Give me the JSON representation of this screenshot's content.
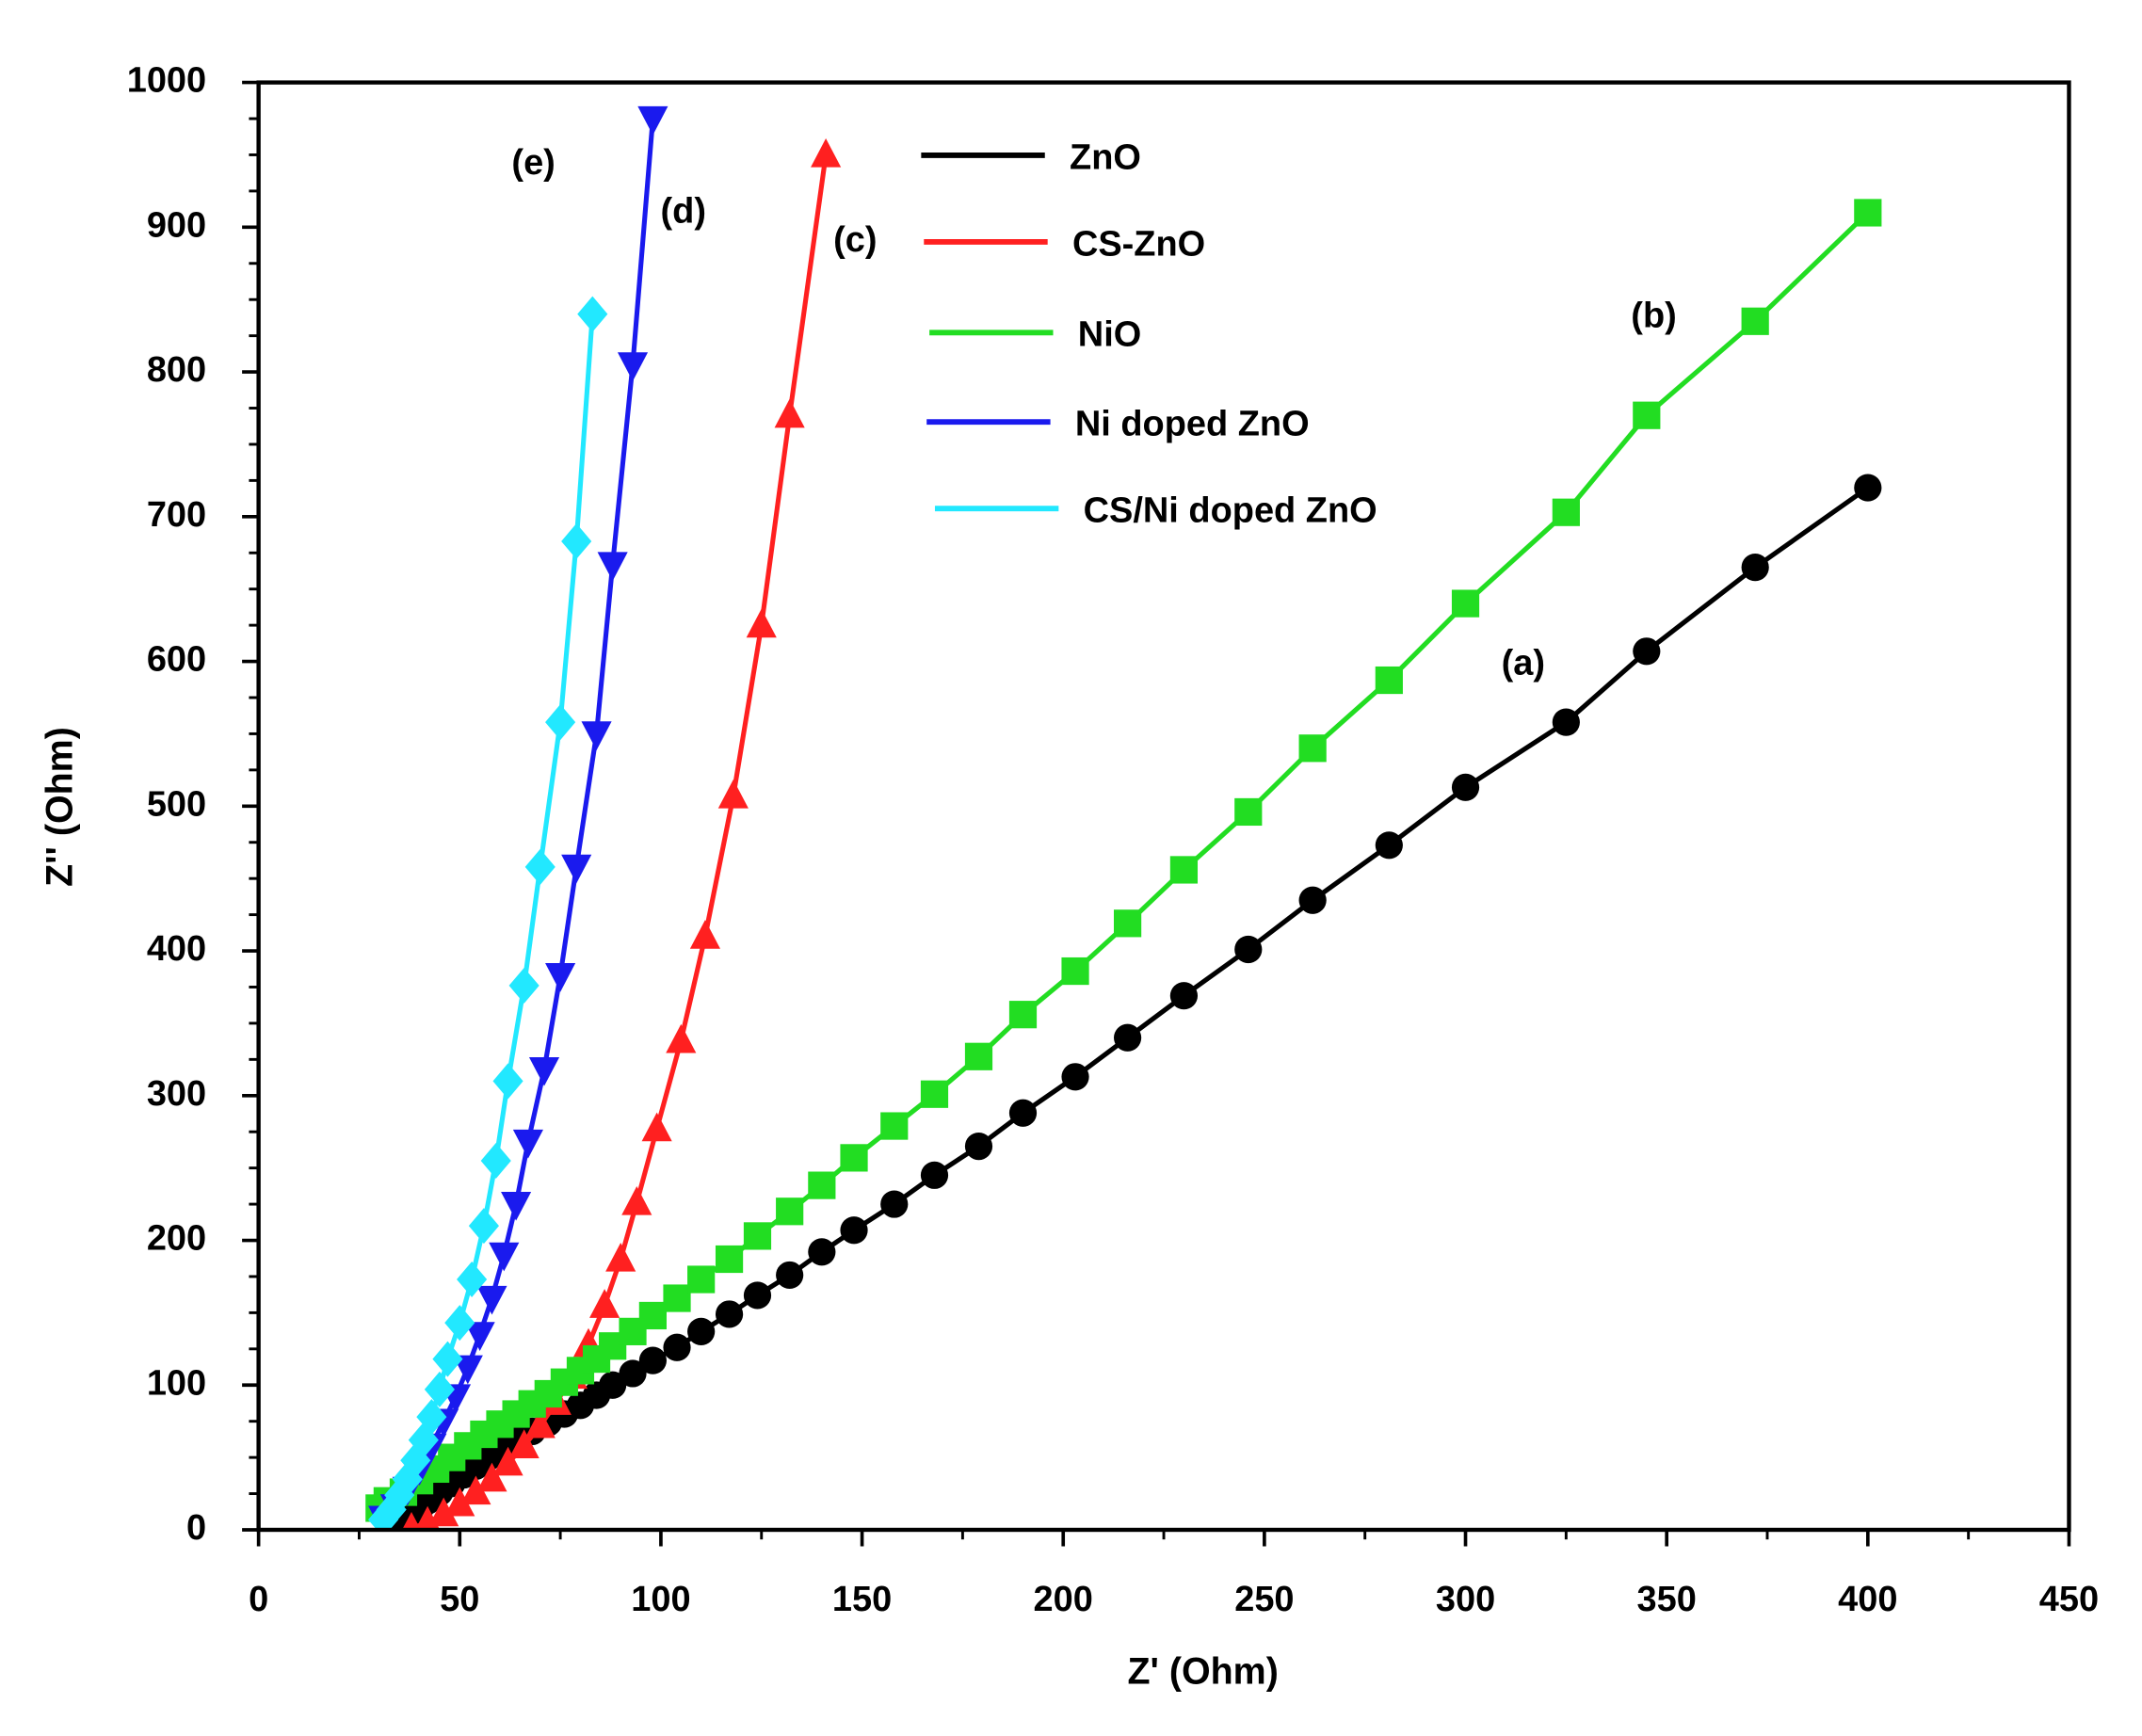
{
  "chart_data": {
    "type": "line",
    "xlabel": "Z' (Ohm)",
    "ylabel": "Z'' (Ohm)",
    "xlim": [
      0,
      450
    ],
    "xticks": [
      0,
      50,
      100,
      150,
      200,
      250,
      300,
      350,
      400,
      450
    ],
    "ylim": [
      0,
      1000
    ],
    "yticks": [
      0,
      100,
      200,
      300,
      400,
      500,
      600,
      700,
      800,
      900,
      1000
    ],
    "legend": "upper center",
    "annotations": [
      "(a)",
      "(b)",
      "(c)",
      "(d)",
      "(e)"
    ],
    "series": [
      {
        "name": "ZnO",
        "color": "#000000",
        "marker": "circle",
        "x": [
          36,
          38,
          40,
          42,
          45,
          48,
          51,
          54,
          57,
          60,
          64,
          68,
          72,
          76,
          80,
          84,
          88,
          93,
          98,
          104,
          110,
          117,
          124,
          132,
          140,
          148,
          158,
          168,
          179,
          190,
          203,
          216,
          230,
          246,
          262,
          281,
          300,
          325,
          345,
          372,
          400
        ],
        "values": [
          3,
          8,
          14,
          20,
          26,
          32,
          38,
          44,
          50,
          56,
          62,
          68,
          74,
          80,
          86,
          93,
          100,
          108,
          117,
          126,
          137,
          149,
          162,
          176,
          192,
          207,
          225,
          245,
          265,
          288,
          313,
          340,
          369,
          401,
          435,
          473,
          513,
          558,
          607,
          665,
          720
        ]
      },
      {
        "name": "CS-ZnO",
        "color": "#ff2020",
        "marker": "triangle-up",
        "x": [
          38,
          42,
          46,
          50,
          54,
          58,
          62,
          66,
          70,
          74,
          78,
          82,
          86,
          90,
          94,
          99,
          105,
          111,
          118,
          125,
          132,
          141
        ],
        "values": [
          1,
          5,
          11,
          18,
          26,
          35,
          46,
          58,
          72,
          88,
          106,
          128,
          155,
          187,
          226,
          277,
          338,
          410,
          507,
          625,
          770,
          950
        ]
      },
      {
        "name": "NiO",
        "color": "#22dd22",
        "marker": "square",
        "x": [
          30,
          32,
          36,
          40,
          44,
          48,
          52,
          56,
          60,
          64,
          68,
          72,
          76,
          80,
          84,
          88,
          93,
          98,
          104,
          110,
          117,
          124,
          132,
          140,
          148,
          158,
          168,
          179,
          190,
          203,
          216,
          230,
          246,
          262,
          281,
          300,
          325,
          345,
          372,
          400
        ],
        "values": [
          15,
          20,
          26,
          34,
          42,
          50,
          58,
          66,
          73,
          80,
          87,
          94,
          102,
          110,
          118,
          127,
          137,
          148,
          160,
          173,
          187,
          203,
          220,
          238,
          257,
          279,
          301,
          327,
          356,
          386,
          419,
          456,
          496,
          540,
          587,
          640,
          703,
          770,
          835,
          910
        ]
      },
      {
        "name": "Ni doped ZnO",
        "color": "#1a1aee",
        "marker": "triangle-down",
        "x": [
          31,
          34,
          37,
          40,
          43,
          46,
          49,
          52,
          55,
          58,
          61,
          64,
          67,
          71,
          75,
          79,
          84,
          88,
          93,
          98
        ],
        "values": [
          8,
          16,
          28,
          42,
          58,
          75,
          92,
          112,
          135,
          160,
          190,
          225,
          268,
          318,
          383,
          458,
          550,
          667,
          805,
          975
        ]
      },
      {
        "name": "CS/Ni doped ZnO",
        "color": "#22e8ff",
        "marker": "diamond",
        "x": [
          31,
          33,
          35,
          37,
          39,
          41,
          43,
          45,
          47,
          50,
          53,
          56,
          59,
          62,
          66,
          70,
          75,
          79,
          83
        ],
        "values": [
          7,
          14,
          24,
          35,
          48,
          62,
          78,
          97,
          118,
          143,
          173,
          210,
          255,
          310,
          376,
          458,
          558,
          683,
          840
        ]
      }
    ]
  }
}
